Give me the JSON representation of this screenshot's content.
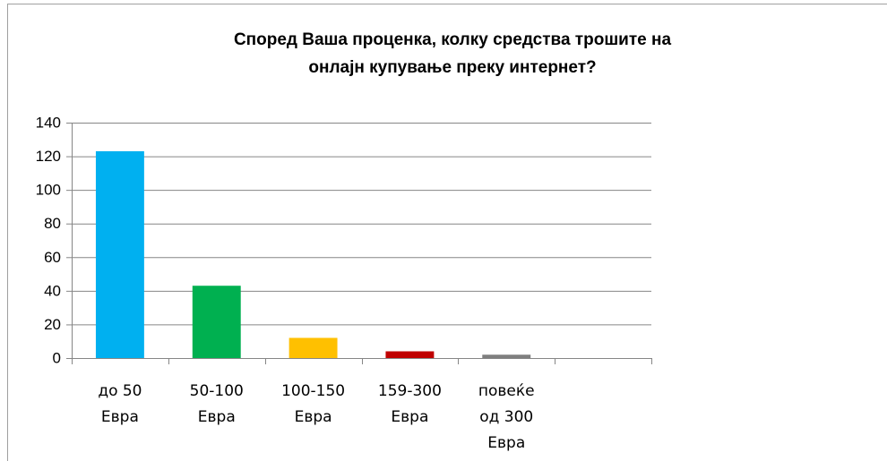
{
  "chart_data": {
    "type": "bar",
    "title": [
      "Според Ваша проценка, колку средства трошите на",
      "онлајн купување преку интернет?"
    ],
    "categories": [
      [
        "до 50",
        "Евра"
      ],
      [
        "50-100",
        "Евра"
      ],
      [
        "100-150",
        "Евра"
      ],
      [
        "159-300",
        "Евра"
      ],
      [
        "повеќе",
        "од 300",
        "Евра"
      ],
      null
    ],
    "values": [
      123,
      43,
      12,
      4,
      2,
      null
    ],
    "colors": [
      "#00b0f0",
      "#00b050",
      "#ffc000",
      "#c00000",
      "#7f7f7f",
      null
    ],
    "ylim": [
      0,
      140
    ],
    "yticks": [
      0,
      20,
      40,
      60,
      80,
      100,
      120,
      140
    ],
    "grid": true
  }
}
